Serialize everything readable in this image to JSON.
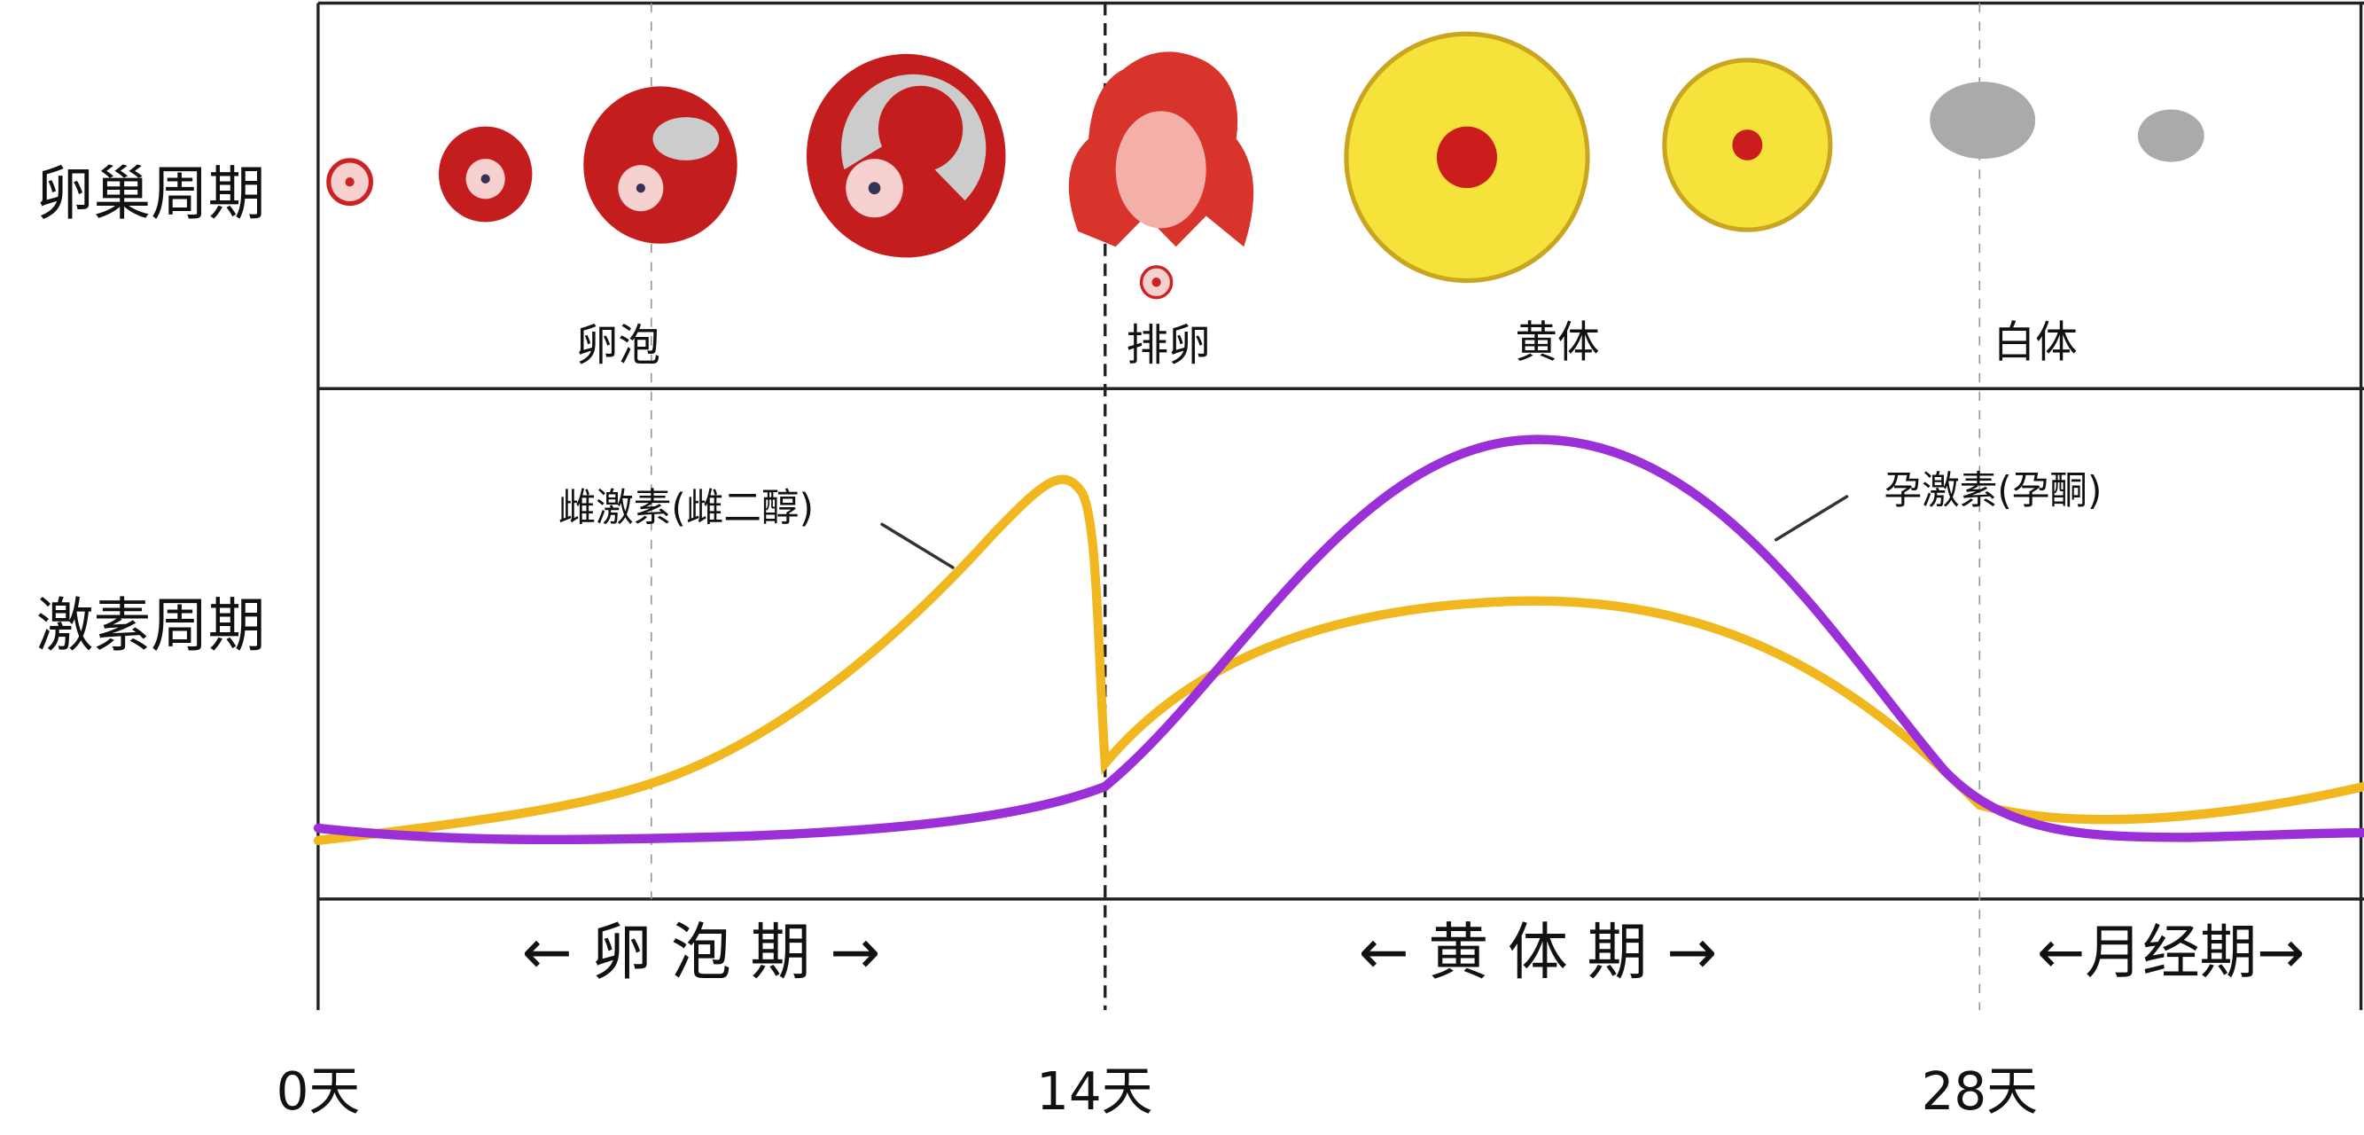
{
  "rows": {
    "ovarian": "卵巢周期",
    "hormone": "激素周期"
  },
  "stages": {
    "follicle": "卵泡",
    "ovulation": "排卵",
    "corpus_luteum": "黄体",
    "corpus_albicans": "白体"
  },
  "hormones": {
    "estrogen": "雌激素(雌二醇)",
    "progesterone": "孕激素(孕酮)"
  },
  "phases": {
    "follicular": "← 卵 泡 期 →",
    "luteal": "← 黄 体 期 →",
    "menstrual": "←月经期→"
  },
  "days": {
    "start": "0天",
    "ovulation": "14天",
    "end": "28天"
  }
}
